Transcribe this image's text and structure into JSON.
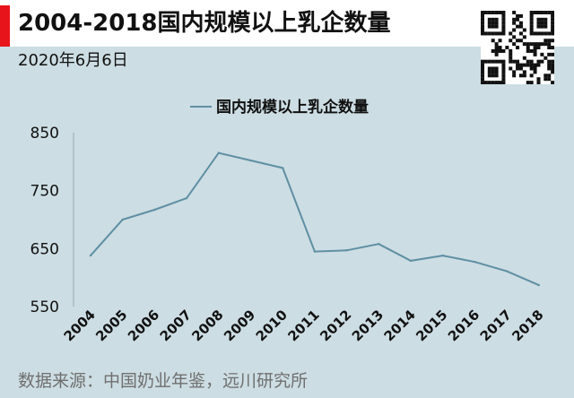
{
  "header": {
    "title": "2004-2018国内规模以上乳企数量",
    "date": "2020年6月6日"
  },
  "footer": {
    "source": "数据来源：中国奶业年鉴，远川研究所"
  },
  "colors": {
    "background": "#ccdde3",
    "accent": "#e8141b",
    "line": "#5f8fa3"
  },
  "chart_data": {
    "type": "line",
    "title": "",
    "xlabel": "",
    "ylabel": "",
    "categories": [
      "2004",
      "2005",
      "2006",
      "2007",
      "2008",
      "2009",
      "2010",
      "2011",
      "2012",
      "2013",
      "2014",
      "2015",
      "2016",
      "2017",
      "2018"
    ],
    "series": [
      {
        "name": "国内规模以上乳企数量",
        "values": [
          638,
          700,
          717,
          737,
          815,
          802,
          789,
          645,
          647,
          658,
          629,
          638,
          627,
          611,
          587
        ]
      }
    ],
    "yticks": [
      "550",
      "650",
      "750",
      "850"
    ],
    "ylim": [
      550,
      850
    ],
    "grid": false,
    "legend_position": "top-center"
  }
}
